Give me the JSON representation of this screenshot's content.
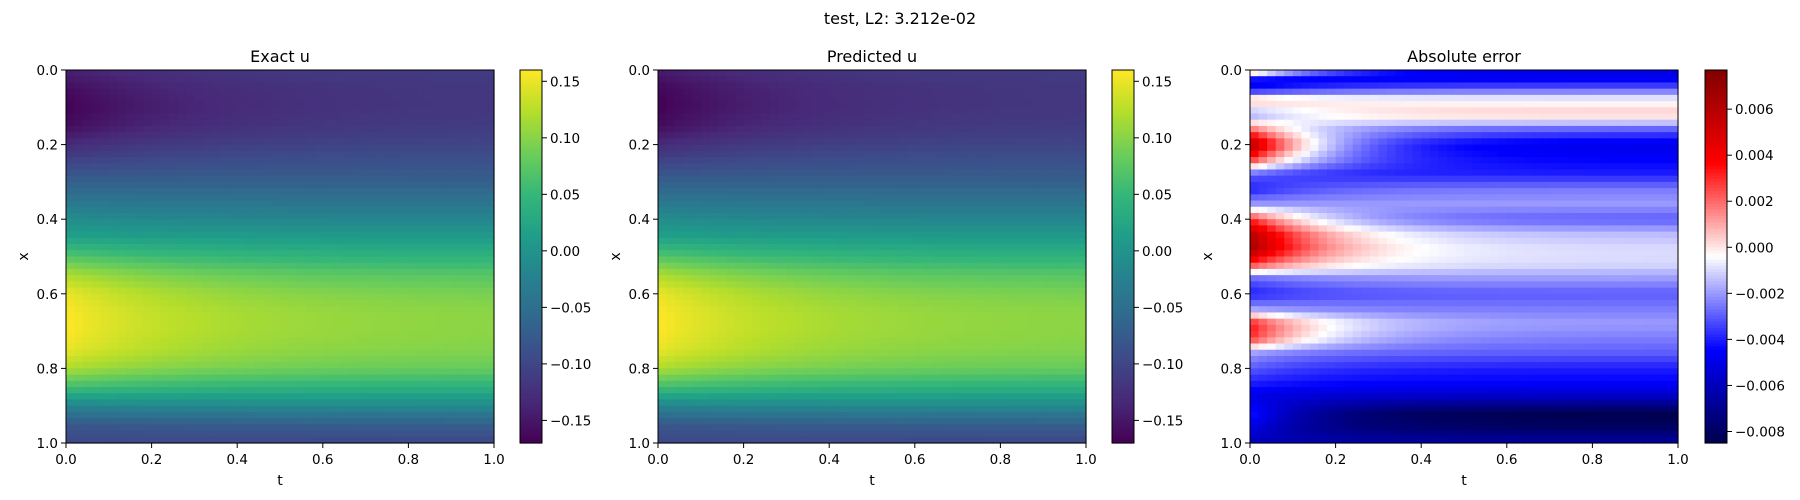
{
  "figure": {
    "suptitle": "test, L2: 3.212e-02"
  },
  "chart_data": [
    {
      "type": "heatmap",
      "title": "Exact u",
      "xlabel": "t",
      "ylabel": "x",
      "xlim": [
        0.0,
        1.0
      ],
      "ylim": [
        1.0,
        0.0
      ],
      "x_ticks": [
        "0.0",
        "0.2",
        "0.4",
        "0.6",
        "0.8",
        "1.0"
      ],
      "y_ticks": [
        "0.0",
        "0.2",
        "0.4",
        "0.6",
        "0.8",
        "1.0"
      ],
      "colormap": "viridis",
      "color_range": [
        -0.17,
        0.16
      ],
      "colorbar_ticks": [
        {
          "value": 0.15,
          "label": "0.15"
        },
        {
          "value": 0.1,
          "label": "0.10"
        },
        {
          "value": 0.05,
          "label": "0.05"
        },
        {
          "value": 0.0,
          "label": "0.00"
        },
        {
          "value": -0.05,
          "label": "−0.05"
        },
        {
          "value": -0.1,
          "label": "−0.10"
        },
        {
          "value": -0.15,
          "label": "−0.15"
        }
      ],
      "profile_x": [
        0.0,
        0.05,
        0.1,
        0.15,
        0.2,
        0.3,
        0.4,
        0.45,
        0.5,
        0.55,
        0.6,
        0.65,
        0.7,
        0.75,
        0.8,
        0.85,
        0.9,
        0.95,
        1.0
      ],
      "profile_u_at_t0": [
        -0.14,
        -0.16,
        -0.17,
        -0.16,
        -0.13,
        -0.07,
        -0.01,
        0.02,
        0.07,
        0.12,
        0.15,
        0.16,
        0.16,
        0.15,
        0.12,
        0.06,
        -0.02,
        -0.08,
        -0.1
      ],
      "profile_u_at_t1": [
        -0.11,
        -0.115,
        -0.115,
        -0.11,
        -0.1,
        -0.07,
        -0.02,
        0.01,
        0.04,
        0.07,
        0.09,
        0.1,
        0.1,
        0.095,
        0.08,
        0.04,
        -0.01,
        -0.07,
        -0.1
      ]
    },
    {
      "type": "heatmap",
      "title": "Predicted u",
      "xlabel": "t",
      "ylabel": "x",
      "xlim": [
        0.0,
        1.0
      ],
      "ylim": [
        1.0,
        0.0
      ],
      "x_ticks": [
        "0.0",
        "0.2",
        "0.4",
        "0.6",
        "0.8",
        "1.0"
      ],
      "y_ticks": [
        "0.0",
        "0.2",
        "0.4",
        "0.6",
        "0.8",
        "1.0"
      ],
      "colormap": "viridis",
      "color_range": [
        -0.17,
        0.16
      ],
      "colorbar_ticks": [
        {
          "value": 0.15,
          "label": "0.15"
        },
        {
          "value": 0.1,
          "label": "0.10"
        },
        {
          "value": 0.05,
          "label": "0.05"
        },
        {
          "value": 0.0,
          "label": "0.00"
        },
        {
          "value": -0.05,
          "label": "−0.05"
        },
        {
          "value": -0.1,
          "label": "−0.10"
        },
        {
          "value": -0.15,
          "label": "−0.15"
        }
      ],
      "profile_x": [
        0.0,
        0.05,
        0.1,
        0.15,
        0.2,
        0.3,
        0.4,
        0.45,
        0.5,
        0.55,
        0.6,
        0.65,
        0.7,
        0.75,
        0.8,
        0.85,
        0.9,
        0.95,
        1.0
      ],
      "profile_u_at_t0": [
        -0.145,
        -0.165,
        -0.17,
        -0.16,
        -0.13,
        -0.07,
        -0.01,
        0.02,
        0.07,
        0.12,
        0.15,
        0.16,
        0.16,
        0.15,
        0.12,
        0.06,
        -0.02,
        -0.08,
        -0.1
      ],
      "profile_u_at_t1": [
        -0.11,
        -0.115,
        -0.115,
        -0.11,
        -0.1,
        -0.07,
        -0.02,
        0.01,
        0.04,
        0.07,
        0.09,
        0.1,
        0.1,
        0.095,
        0.08,
        0.04,
        -0.01,
        -0.07,
        -0.1
      ]
    },
    {
      "type": "heatmap",
      "title": "Absolute error",
      "xlabel": "t",
      "ylabel": "x",
      "xlim": [
        0.0,
        1.0
      ],
      "ylim": [
        1.0,
        0.0
      ],
      "x_ticks": [
        "0.0",
        "0.2",
        "0.4",
        "0.6",
        "0.8",
        "1.0"
      ],
      "y_ticks": [
        "0.0",
        "0.2",
        "0.4",
        "0.6",
        "0.8",
        "1.0"
      ],
      "colormap": "seismic",
      "color_range": [
        -0.0085,
        0.0077
      ],
      "colorbar_ticks": [
        {
          "value": 0.006,
          "label": "0.006"
        },
        {
          "value": 0.004,
          "label": "0.004"
        },
        {
          "value": 0.002,
          "label": "0.002"
        },
        {
          "value": 0.0,
          "label": "0.000"
        },
        {
          "value": -0.002,
          "label": "−0.002"
        },
        {
          "value": -0.004,
          "label": "−0.004"
        },
        {
          "value": -0.006,
          "label": "−0.006"
        },
        {
          "value": -0.008,
          "label": "−0.008"
        }
      ],
      "error_bands_x": [
        0.0,
        0.02,
        0.05,
        0.08,
        0.12,
        0.16,
        0.2,
        0.24,
        0.28,
        0.32,
        0.36,
        0.4,
        0.44,
        0.48,
        0.52,
        0.56,
        0.6,
        0.64,
        0.68,
        0.72,
        0.76,
        0.8,
        0.84,
        0.88,
        0.92,
        0.96,
        1.0
      ],
      "error_at_t0": [
        0.003,
        -0.004,
        -0.005,
        0.001,
        -0.002,
        0.002,
        0.0065,
        0.003,
        -0.003,
        -0.004,
        -0.002,
        0.003,
        0.006,
        0.0065,
        0.003,
        -0.003,
        -0.004,
        -0.002,
        0.0035,
        0.003,
        -0.002,
        -0.003,
        -0.004,
        -0.005,
        -0.004,
        -0.005,
        -0.006
      ],
      "error_at_t1": [
        -0.005,
        -0.005,
        -0.003,
        -0.0005,
        0.0005,
        -0.003,
        -0.005,
        -0.0045,
        -0.004,
        -0.0025,
        -0.002,
        -0.003,
        -0.0015,
        -0.001,
        -0.001,
        -0.002,
        -0.003,
        -0.0025,
        -0.002,
        -0.0025,
        -0.003,
        -0.004,
        -0.0045,
        -0.006,
        -0.0085,
        -0.008,
        -0.0065
      ]
    }
  ]
}
